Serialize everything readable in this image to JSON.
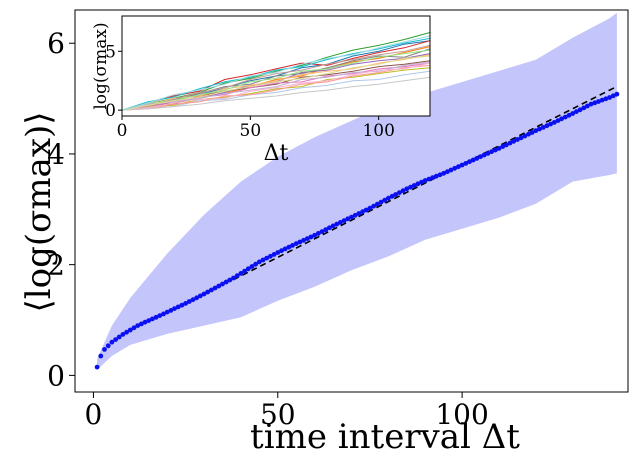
{
  "colors": {
    "band": "#c4c6fb",
    "points": "#0a10f0",
    "fit": "#000000",
    "axis": "#000000",
    "inset_series": [
      "#1f77b4",
      "#ff7f0e",
      "#2ca02c",
      "#d62728",
      "#9467bd",
      "#8c564b",
      "#e377c2",
      "#7f7f7f",
      "#bcbd22",
      "#17becf",
      "#aec7e8",
      "#ffbb78",
      "#98df8a",
      "#ff9896",
      "#c5b0d5",
      "#c49c94",
      "#f7b6d2",
      "#c7c7c7",
      "#dbdb8d",
      "#9edae5"
    ]
  },
  "chart_data": [
    {
      "id": "main",
      "type": "scatter",
      "xlabel": "time interval Δt",
      "ylabel": "⟨log(σmax)⟩",
      "xlim": [
        -5,
        145
      ],
      "ylim": [
        -0.3,
        6.6
      ],
      "xticks": [
        0,
        50,
        100
      ],
      "yticks": [
        0,
        2,
        4,
        6
      ],
      "xtick_labels": [
        "0",
        "50",
        "100"
      ],
      "ytick_labels": [
        "0",
        "2",
        "4",
        "6"
      ],
      "mean_curve": {
        "x": [
          1,
          2,
          3,
          5,
          8,
          12,
          18,
          25,
          30,
          38,
          45,
          50,
          55,
          60,
          65,
          70,
          75,
          80,
          85,
          90,
          95,
          100,
          105,
          110,
          115,
          120,
          125,
          130,
          135,
          140,
          142
        ],
        "y": [
          0.15,
          0.35,
          0.47,
          0.6,
          0.74,
          0.9,
          1.08,
          1.3,
          1.47,
          1.76,
          2.05,
          2.22,
          2.38,
          2.53,
          2.7,
          2.86,
          3.02,
          3.2,
          3.37,
          3.52,
          3.65,
          3.8,
          3.95,
          4.1,
          4.26,
          4.42,
          4.57,
          4.73,
          4.9,
          5.02,
          5.08
        ]
      },
      "band_upper": {
        "x": [
          1,
          5,
          10,
          20,
          30,
          40,
          50,
          60,
          70,
          80,
          90,
          100,
          110,
          120,
          130,
          140,
          142
        ],
        "y": [
          0.3,
          0.9,
          1.4,
          2.2,
          2.9,
          3.5,
          3.95,
          4.3,
          4.6,
          4.9,
          5.1,
          5.3,
          5.5,
          5.7,
          6.1,
          6.45,
          6.55
        ]
      },
      "band_lower": {
        "x": [
          1,
          5,
          10,
          20,
          30,
          40,
          50,
          60,
          70,
          80,
          90,
          100,
          110,
          120,
          130,
          140,
          142
        ],
        "y": [
          0.1,
          0.35,
          0.55,
          0.75,
          0.9,
          1.05,
          1.35,
          1.6,
          1.9,
          2.15,
          2.45,
          2.65,
          2.85,
          3.1,
          3.5,
          3.62,
          3.65
        ]
      },
      "fit_line": {
        "style": "dashed",
        "x": [
          38,
          142
        ],
        "y": [
          1.73,
          5.22
        ]
      },
      "grid": false,
      "legend": "none"
    },
    {
      "id": "inset",
      "type": "line",
      "xlabel": "Δt",
      "ylabel": "log(σmax)",
      "xlim": [
        0,
        120
      ],
      "ylim": [
        -0.5,
        8
      ],
      "xticks": [
        0,
        50,
        100
      ],
      "yticks": [
        0,
        5
      ],
      "xtick_labels": [
        "0",
        "50",
        "100"
      ],
      "ytick_labels": [
        "0",
        "5"
      ],
      "series": [
        {
          "values": [
            0,
            0.4,
            0.9,
            1.3,
            1.9,
            2.5,
            2.9,
            3.6,
            3.9,
            4.6,
            5.0,
            5.6,
            5.9
          ]
        },
        {
          "values": [
            0,
            0.3,
            0.6,
            1.1,
            1.4,
            2.0,
            2.6,
            2.9,
            3.6,
            4.1,
            4.4,
            4.9,
            5.4
          ]
        },
        {
          "values": [
            0,
            0.5,
            1.0,
            1.5,
            2.3,
            2.7,
            3.3,
            3.8,
            4.5,
            5.1,
            5.5,
            6.0,
            6.6
          ]
        },
        {
          "values": [
            0,
            0.6,
            1.2,
            1.6,
            2.6,
            3.0,
            3.5,
            4.0,
            3.8,
            4.4,
            4.9,
            5.3,
            5.9
          ]
        },
        {
          "values": [
            0,
            0.3,
            0.7,
            1.0,
            1.5,
            2.1,
            2.4,
            3.2,
            3.4,
            3.9,
            4.2,
            4.4,
            4.8
          ]
        },
        {
          "values": [
            0,
            0.4,
            0.5,
            1.2,
            1.6,
            1.9,
            2.2,
            2.8,
            3.0,
            3.3,
            3.7,
            3.9,
            4.2
          ]
        },
        {
          "values": [
            0,
            0.2,
            0.8,
            1.1,
            1.3,
            1.9,
            2.3,
            2.4,
            2.9,
            3.1,
            3.5,
            3.7,
            4.0
          ]
        },
        {
          "values": [
            0,
            0.5,
            0.9,
            1.4,
            2.0,
            2.2,
            2.9,
            3.1,
            3.6,
            4.2,
            4.6,
            4.5,
            5.2
          ]
        },
        {
          "values": [
            0,
            0.3,
            0.4,
            0.9,
            1.1,
            1.4,
            1.8,
            2.0,
            2.6,
            2.8,
            3.1,
            3.4,
            3.6
          ]
        },
        {
          "values": [
            0,
            0.7,
            1.1,
            1.8,
            2.4,
            2.8,
            3.4,
            3.7,
            4.3,
            4.8,
            5.2,
            5.7,
            6.1
          ]
        },
        {
          "values": [
            0,
            0.2,
            0.3,
            0.8,
            0.9,
            1.3,
            1.5,
            1.9,
            2.1,
            2.5,
            2.6,
            3.0,
            3.3
          ]
        },
        {
          "values": [
            0,
            0.4,
            1.0,
            1.2,
            1.8,
            2.1,
            2.5,
            3.0,
            3.3,
            3.5,
            4.0,
            4.3,
            4.7
          ]
        },
        {
          "values": [
            0,
            0.6,
            0.8,
            1.3,
            1.7,
            2.4,
            2.7,
            3.3,
            3.5,
            4.0,
            4.5,
            4.8,
            5.1
          ]
        },
        {
          "values": [
            0,
            0.1,
            0.5,
            0.7,
            1.2,
            1.3,
            1.7,
            2.2,
            2.4,
            2.9,
            3.2,
            3.6,
            3.8
          ]
        },
        {
          "values": [
            0,
            0.5,
            0.7,
            1.0,
            1.4,
            1.7,
            2.0,
            2.6,
            2.8,
            3.2,
            3.3,
            3.8,
            4.1
          ]
        },
        {
          "values": [
            0,
            0.3,
            0.9,
            1.5,
            1.9,
            2.6,
            3.1,
            3.4,
            3.9,
            4.3,
            4.7,
            5.0,
            5.5
          ]
        },
        {
          "values": [
            0,
            0.2,
            0.6,
            0.9,
            1.0,
            1.6,
            1.9,
            2.3,
            2.5,
            3.0,
            3.4,
            3.5,
            4.0
          ]
        },
        {
          "values": [
            0,
            0.1,
            0.3,
            0.5,
            0.8,
            1.0,
            1.2,
            1.5,
            1.7,
            2.0,
            2.2,
            2.5,
            2.8
          ]
        },
        {
          "values": [
            0,
            0.4,
            0.8,
            1.1,
            1.6,
            2.0,
            2.4,
            2.7,
            3.1,
            3.6,
            3.9,
            4.4,
            4.6
          ]
        },
        {
          "values": [
            0,
            0.6,
            1.3,
            1.7,
            2.2,
            2.9,
            3.2,
            3.9,
            4.4,
            4.7,
            5.3,
            5.8,
            6.3
          ]
        }
      ],
      "x": [
        0,
        10,
        20,
        30,
        40,
        50,
        60,
        70,
        80,
        90,
        100,
        110,
        120
      ],
      "grid": false,
      "legend": "none"
    }
  ]
}
